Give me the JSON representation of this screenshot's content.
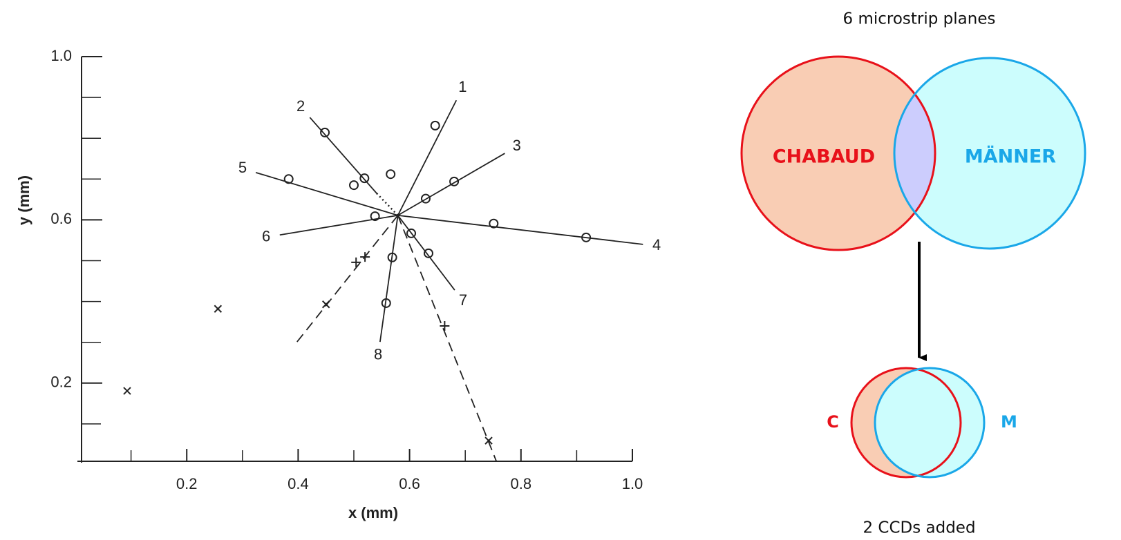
{
  "chart_data": {
    "type": "scatter",
    "x_label": "x (mm)",
    "y_label": "y (mm)",
    "xlim": [
      0,
      1.0
    ],
    "ylim": [
      0,
      1.0
    ],
    "xticks": [
      0.2,
      0.4,
      0.6,
      0.8,
      {
        "value": 1,
        "label": "1.0"
      }
    ],
    "yticks": [
      0.2,
      0.6,
      {
        "value": 1,
        "label": "1.0"
      }
    ],
    "x_minor_ticks": [
      0.1,
      0.3,
      0.5,
      0.7,
      0.9
    ],
    "y_minor_ticks": [
      0.1,
      0.3,
      0.4,
      0.5,
      0.7,
      0.8,
      0.9
    ],
    "color": "#222222",
    "tracks": [
      {
        "label": "1",
        "style": "solid",
        "x": [
          0.579,
          0.684
        ],
        "y": [
          0.611,
          0.893
        ]
      },
      {
        "label": "2",
        "style": "solid",
        "x": [
          0.421,
          0.541
        ],
        "y": [
          0.851,
          0.665
        ]
      },
      {
        "style": "dotted",
        "x": [
          0.541,
          0.579
        ],
        "y": [
          0.665,
          0.611
        ]
      },
      {
        "label": "3",
        "style": "solid",
        "x": [
          0.579,
          0.771
        ],
        "y": [
          0.611,
          0.763
        ]
      },
      {
        "label": "4",
        "style": "solid",
        "x": [
          0.579,
          1.019
        ],
        "y": [
          0.611,
          0.54
        ]
      },
      {
        "label": "5",
        "style": "solid",
        "x": [
          0.324,
          0.579
        ],
        "y": [
          0.716,
          0.611
        ]
      },
      {
        "label": "6",
        "style": "solid",
        "x": [
          0.367,
          0.579
        ],
        "y": [
          0.563,
          0.611
        ]
      },
      {
        "label": "7",
        "style": "solid",
        "x": [
          0.579,
          0.681
        ],
        "y": [
          0.611,
          0.428
        ]
      },
      {
        "label": "8",
        "style": "solid",
        "x": [
          0.579,
          0.547
        ],
        "y": [
          0.611,
          0.301
        ]
      },
      {
        "style": "dashed",
        "x": [
          0.398,
          0.579
        ],
        "y": [
          0.301,
          0.611
        ]
      },
      {
        "style": "dashed",
        "x": [
          0.579,
          0.756
        ],
        "y": [
          0.611,
          0.008
        ]
      }
    ],
    "series": [
      {
        "marker": "o",
        "x": [
          0.448,
          0.646,
          0.519,
          0.566,
          0.5,
          0.383,
          0.68,
          0.629,
          0.538,
          0.603,
          0.751,
          0.917,
          0.634,
          0.569,
          0.558
        ],
        "y": [
          0.814,
          0.831,
          0.702,
          0.712,
          0.685,
          0.7,
          0.694,
          0.652,
          0.609,
          0.567,
          0.591,
          0.557,
          0.518,
          0.508,
          0.396
        ]
      },
      {
        "marker": "+",
        "x": [
          0.504,
          0.52,
          0.663
        ],
        "y": [
          0.496,
          0.509,
          0.34
        ]
      },
      {
        "marker": "x",
        "x": [
          0.256,
          0.093,
          0.45,
          0.742
        ],
        "y": [
          0.382,
          0.181,
          0.393,
          0.059
        ]
      }
    ]
  },
  "diagram": {
    "title": "6 microstrip planes",
    "left_label": "CHABAUD",
    "right_label": "MÄNNER",
    "small_left_label": "C",
    "small_right_label": "M",
    "caption": "2 CCDs added"
  }
}
